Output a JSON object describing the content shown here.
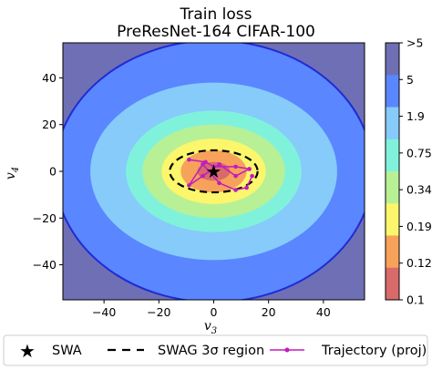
{
  "chart_data": {
    "type": "contour",
    "title": "Train loss",
    "subtitle": "PreResNet-164 CIFAR-100",
    "xlabel": "v",
    "xlabel_sub": "3",
    "ylabel": "v",
    "ylabel_sub": "4",
    "xlim": [
      -55,
      55
    ],
    "ylim": [
      -55,
      55
    ],
    "xticks": [
      -40,
      -20,
      0,
      20,
      40
    ],
    "yticks": [
      40,
      20,
      0,
      -20,
      -40
    ],
    "colorbar": {
      "labels": [
        ">5",
        "5",
        "1.9",
        "0.75",
        "0.34",
        "0.19",
        "0.12",
        "0.1"
      ],
      "colors": [
        "#6f6fb5",
        "#5a86ff",
        "#86cbfa",
        "#80f2dc",
        "#b8f095",
        "#fbf66b",
        "#f7a25a",
        "#d86a6a"
      ]
    },
    "contours": [
      {
        "rx": 78,
        "ry": 74,
        "color": "#6f6fb5"
      },
      {
        "rx": 58,
        "ry": 56,
        "color": "#5a86ff"
      },
      {
        "rx": 45,
        "ry": 38,
        "color": "#86cbfa"
      },
      {
        "rx": 32,
        "ry": 26,
        "color": "#80f2dc"
      },
      {
        "rx": 26,
        "ry": 20,
        "color": "#b8f095"
      },
      {
        "rx": 19,
        "ry": 14,
        "color": "#fbf66b"
      },
      {
        "rx": 12,
        "ry": 9,
        "color": "#f7a25a"
      },
      {
        "rx": 6,
        "ry": 4,
        "color": "#d86a6a"
      }
    ],
    "swa_point": {
      "x": 0,
      "y": 0
    },
    "swag_region": {
      "rx": 16,
      "ry": 9
    },
    "trajectory": [
      {
        "x": -9,
        "y": 5
      },
      {
        "x": -3,
        "y": 4
      },
      {
        "x": 0,
        "y": 2
      },
      {
        "x": 8,
        "y": 2
      },
      {
        "x": 13,
        "y": 1
      },
      {
        "x": 8,
        "y": -2
      },
      {
        "x": 2,
        "y": 3
      },
      {
        "x": -4,
        "y": -2
      },
      {
        "x": -9,
        "y": -6
      },
      {
        "x": -4,
        "y": 3
      },
      {
        "x": 2,
        "y": -5
      },
      {
        "x": 8,
        "y": -8
      },
      {
        "x": 12,
        "y": -7
      },
      {
        "x": 14,
        "y": -2
      }
    ],
    "legend": [
      {
        "label": "SWA",
        "marker": "star"
      },
      {
        "label": "SWAG 3σ region",
        "marker": "dashed-line"
      },
      {
        "label": "Trajectory (proj)",
        "marker": "line-dot"
      }
    ]
  }
}
